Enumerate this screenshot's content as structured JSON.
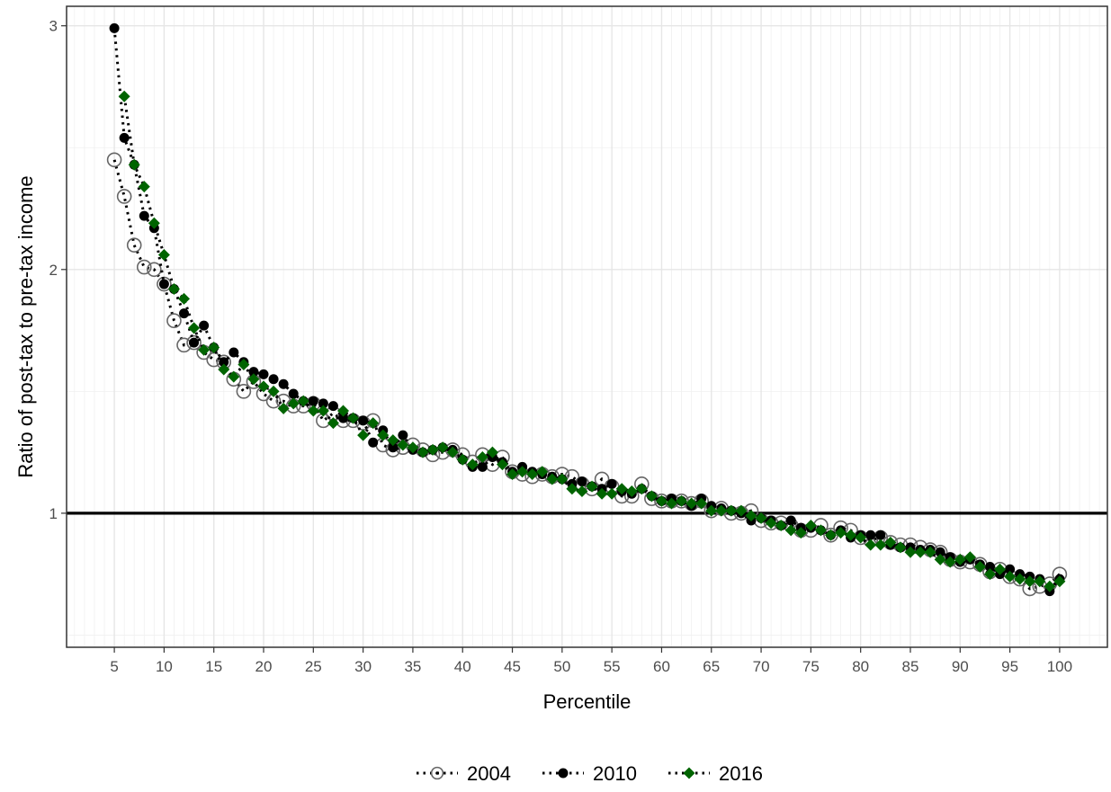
{
  "chart_data": {
    "type": "scatter",
    "title": "",
    "xlabel": "Percentile",
    "ylabel": "Ratio of post-tax to pre-tax income",
    "xlim": [
      0.2,
      104.8
    ],
    "ylim": [
      0.45,
      3.08
    ],
    "xticks": [
      5,
      10,
      15,
      20,
      25,
      30,
      35,
      40,
      45,
      50,
      55,
      60,
      65,
      70,
      75,
      80,
      85,
      90,
      95,
      100
    ],
    "xtick_labels": [
      "5",
      "10",
      "15",
      "20",
      "25",
      "30",
      "35",
      "40",
      "45",
      "50",
      "55",
      "60",
      "65",
      "70",
      "75",
      "80",
      "85",
      "90",
      "95",
      "100"
    ],
    "yticks": [
      1,
      2,
      3
    ],
    "ytick_labels": [
      "1",
      "2",
      "3"
    ],
    "minor_yticks": [
      0.5,
      1.5,
      2.5
    ],
    "grid": true,
    "reference_line": {
      "y": 1.0,
      "color": "#000000"
    },
    "legend_position": "bottom",
    "x": [
      5,
      6,
      7,
      8,
      9,
      10,
      11,
      12,
      13,
      14,
      15,
      16,
      17,
      18,
      19,
      20,
      21,
      22,
      23,
      24,
      25,
      26,
      27,
      28,
      29,
      30,
      31,
      32,
      33,
      34,
      35,
      36,
      37,
      38,
      39,
      40,
      41,
      42,
      43,
      44,
      45,
      46,
      47,
      48,
      49,
      50,
      51,
      52,
      53,
      54,
      55,
      56,
      57,
      58,
      59,
      60,
      61,
      62,
      63,
      64,
      65,
      66,
      67,
      68,
      69,
      70,
      71,
      72,
      73,
      74,
      75,
      76,
      77,
      78,
      79,
      80,
      81,
      82,
      83,
      84,
      85,
      86,
      87,
      88,
      89,
      90,
      91,
      92,
      93,
      94,
      95,
      96,
      97,
      98,
      99,
      100
    ],
    "series": [
      {
        "name": "2004",
        "marker": "open-circle",
        "color": "#666666",
        "values": [
          2.45,
          2.3,
          2.1,
          2.01,
          2.0,
          1.94,
          1.79,
          1.69,
          1.7,
          1.66,
          1.63,
          1.62,
          1.55,
          1.5,
          1.54,
          1.49,
          1.46,
          1.46,
          1.44,
          1.44,
          1.45,
          1.38,
          1.41,
          1.38,
          1.38,
          1.37,
          1.38,
          1.28,
          1.26,
          1.27,
          1.28,
          1.26,
          1.24,
          1.25,
          1.26,
          1.24,
          1.21,
          1.24,
          1.2,
          1.23,
          1.17,
          1.16,
          1.15,
          1.16,
          1.15,
          1.16,
          1.15,
          1.12,
          1.1,
          1.14,
          1.11,
          1.07,
          1.07,
          1.12,
          1.06,
          1.05,
          1.05,
          1.05,
          1.04,
          1.05,
          1.01,
          1.02,
          1.0,
          1.0,
          1.01,
          0.97,
          0.96,
          0.96,
          0.95,
          0.93,
          0.93,
          0.95,
          0.91,
          0.94,
          0.93,
          0.9,
          0.89,
          0.9,
          0.88,
          0.87,
          0.87,
          0.86,
          0.85,
          0.84,
          0.81,
          0.8,
          0.8,
          0.79,
          0.76,
          0.77,
          0.74,
          0.73,
          0.69,
          0.7,
          0.71,
          0.75
        ]
      },
      {
        "name": "2010",
        "marker": "filled-circle",
        "color": "#000000",
        "values": [
          2.99,
          2.54,
          2.43,
          2.22,
          2.17,
          1.94,
          1.92,
          1.82,
          1.7,
          1.77,
          1.68,
          1.62,
          1.66,
          1.62,
          1.58,
          1.57,
          1.55,
          1.53,
          1.49,
          1.46,
          1.46,
          1.45,
          1.44,
          1.39,
          1.39,
          1.38,
          1.29,
          1.34,
          1.27,
          1.32,
          1.26,
          1.25,
          1.26,
          1.27,
          1.26,
          1.22,
          1.19,
          1.19,
          1.23,
          1.21,
          1.17,
          1.19,
          1.17,
          1.16,
          1.15,
          1.14,
          1.12,
          1.13,
          1.11,
          1.1,
          1.12,
          1.09,
          1.08,
          1.1,
          1.07,
          1.05,
          1.06,
          1.05,
          1.03,
          1.06,
          1.03,
          1.02,
          1.01,
          1.0,
          0.97,
          0.98,
          0.97,
          0.95,
          0.97,
          0.94,
          0.94,
          0.93,
          0.91,
          0.93,
          0.9,
          0.91,
          0.91,
          0.91,
          0.87,
          0.86,
          0.86,
          0.85,
          0.85,
          0.84,
          0.82,
          0.8,
          0.81,
          0.79,
          0.78,
          0.75,
          0.77,
          0.75,
          0.74,
          0.73,
          0.68,
          0.73
        ]
      },
      {
        "name": "2016",
        "marker": "filled-diamond",
        "color": "#006400",
        "values": [
          null,
          2.71,
          2.43,
          2.34,
          2.19,
          2.06,
          1.92,
          1.88,
          1.76,
          1.67,
          1.68,
          1.59,
          1.56,
          1.61,
          1.55,
          1.52,
          1.5,
          1.43,
          1.45,
          1.46,
          1.42,
          1.42,
          1.37,
          1.42,
          1.39,
          1.32,
          1.37,
          1.32,
          1.3,
          1.28,
          1.27,
          1.25,
          1.26,
          1.27,
          1.25,
          1.22,
          1.2,
          1.23,
          1.25,
          1.2,
          1.16,
          1.17,
          1.16,
          1.17,
          1.14,
          1.14,
          1.1,
          1.09,
          1.11,
          1.08,
          1.08,
          1.1,
          1.09,
          1.1,
          1.07,
          1.05,
          1.04,
          1.05,
          1.04,
          1.04,
          1.01,
          1.01,
          1.01,
          1.01,
          0.99,
          0.98,
          0.96,
          0.95,
          0.93,
          0.92,
          0.95,
          0.93,
          0.91,
          0.92,
          0.91,
          0.9,
          0.87,
          0.87,
          0.88,
          0.86,
          0.84,
          0.84,
          0.84,
          0.81,
          0.8,
          0.81,
          0.82,
          0.78,
          0.75,
          0.77,
          0.74,
          0.73,
          0.72,
          0.72,
          0.7,
          0.72
        ]
      }
    ]
  }
}
